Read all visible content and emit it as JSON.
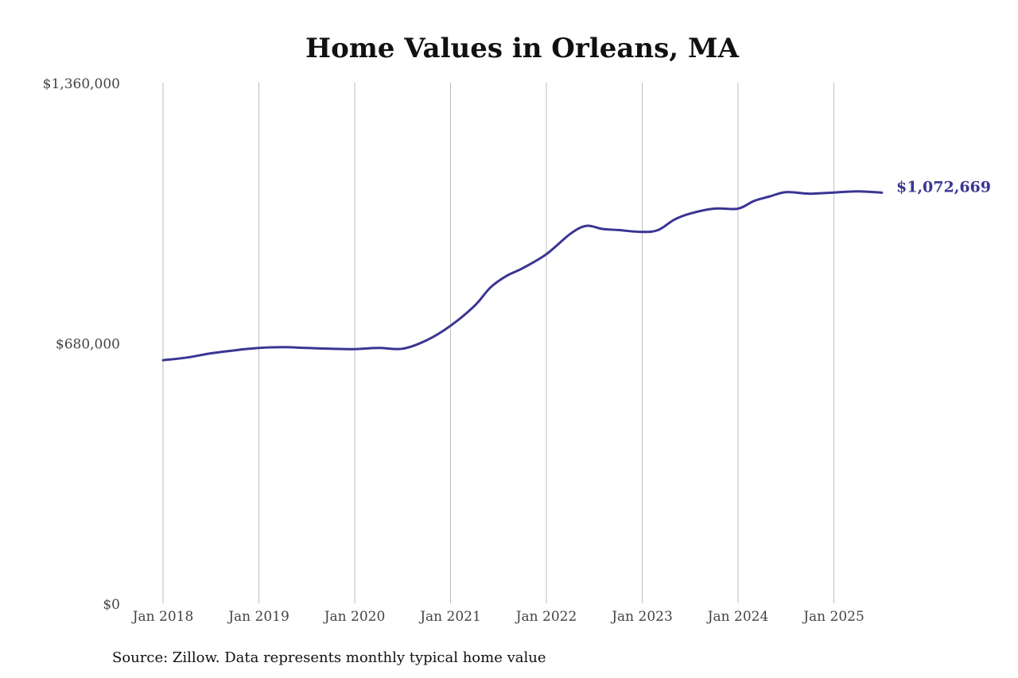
{
  "chart_data": {
    "type": "line",
    "title": "Home Values in Orleans, MA",
    "xlabel": "",
    "ylabel": "",
    "x_ticks": [
      "Jan 2018",
      "Jan 2019",
      "Jan 2020",
      "Jan 2021",
      "Jan 2022",
      "Jan 2023",
      "Jan 2024",
      "Jan 2025"
    ],
    "y_ticks": [
      "$0",
      "$680,000",
      "$1,360,000"
    ],
    "y_tick_values": [
      0,
      680000,
      1360000
    ],
    "xlim": [
      "2018-01",
      "2025-09"
    ],
    "ylim": [
      0,
      1360000
    ],
    "grid": "vertical",
    "line_color": "#3a3593",
    "end_label": "$1,072,669",
    "series": [
      {
        "x": [
          "2018-01",
          "2018-04",
          "2018-07",
          "2018-10",
          "2019-01",
          "2019-04",
          "2019-07",
          "2019-10",
          "2020-01",
          "2020-04",
          "2020-07",
          "2020-10",
          "2021-01",
          "2021-04",
          "2021-06",
          "2021-08",
          "2021-10",
          "2022-01",
          "2022-04",
          "2022-06",
          "2022-08",
          "2022-10",
          "2023-01",
          "2023-03",
          "2023-05",
          "2023-07",
          "2023-10",
          "2024-01",
          "2024-03",
          "2024-05",
          "2024-07",
          "2024-10",
          "2025-01",
          "2025-04",
          "2025-07"
        ],
        "y": [
          635000,
          642000,
          653000,
          661000,
          667000,
          669000,
          667000,
          665000,
          664000,
          667000,
          665000,
          687000,
          725000,
          777000,
          825000,
          855000,
          875000,
          912000,
          965000,
          986000,
          978000,
          975000,
          970000,
          975000,
          1002000,
          1018000,
          1031000,
          1031000,
          1051000,
          1063000,
          1074000,
          1070000,
          1073000,
          1076000,
          1072669
        ]
      }
    ]
  },
  "source": "Source: Zillow. Data represents monthly typical home value"
}
